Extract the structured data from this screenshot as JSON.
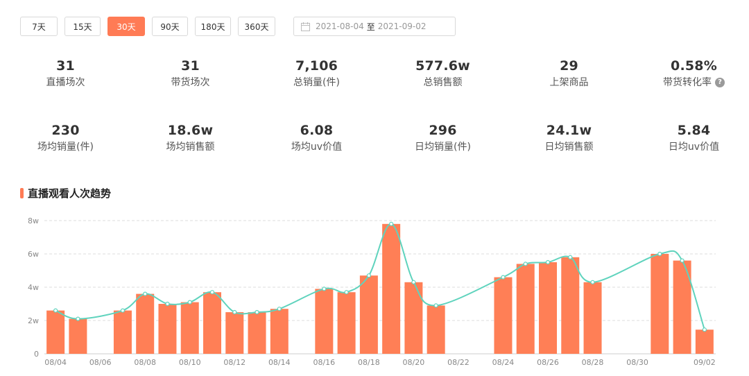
{
  "toolbar": {
    "periods": [
      "7天",
      "15天",
      "30天",
      "90天",
      "180天",
      "360天"
    ],
    "active_period": "30天",
    "date_start": "2021-08-04",
    "date_sep": "至",
    "date_end": "2021-09-02"
  },
  "stats_row1": [
    {
      "value": "31",
      "label": "直播场次"
    },
    {
      "value": "31",
      "label": "带货场次"
    },
    {
      "value": "7,106",
      "label": "总销量(件)"
    },
    {
      "value": "577.6w",
      "label": "总销售额"
    },
    {
      "value": "29",
      "label": "上架商品"
    },
    {
      "value": "0.58%",
      "label": "带货转化率"
    }
  ],
  "stats_row2": [
    {
      "value": "230",
      "label": "场均销量(件)"
    },
    {
      "value": "18.6w",
      "label": "场均销售额"
    },
    {
      "value": "6.08",
      "label": "场均uv价值"
    },
    {
      "value": "296",
      "label": "日均销量(件)"
    },
    {
      "value": "24.1w",
      "label": "日均销售额"
    },
    {
      "value": "5.84",
      "label": "日均uv价值"
    }
  ],
  "section": {
    "title": "直播观看人次趋势"
  },
  "colors": {
    "bar": "#ff7f56",
    "line": "#5fd3bd",
    "accent": "#ff7b55",
    "grid": "#dddddd"
  },
  "icons": {
    "calendar": "calendar-icon",
    "help": "question-circle-icon"
  },
  "chart_data": {
    "type": "bar",
    "title": "直播观看人次趋势",
    "unit": "w",
    "categories": [
      "08/04",
      "08/05",
      "08/06",
      "08/07",
      "08/08",
      "08/09",
      "08/10",
      "08/11",
      "08/12",
      "08/13",
      "08/14",
      "08/15",
      "08/16",
      "08/17",
      "08/18",
      "08/19",
      "08/20",
      "08/21",
      "08/22",
      "08/23",
      "08/24",
      "08/25",
      "08/26",
      "08/27",
      "08/28",
      "08/29",
      "08/30",
      "08/31",
      "09/01",
      "09/02"
    ],
    "x_tick_labels": [
      "08/04",
      "08/06",
      "08/08",
      "08/10",
      "08/12",
      "08/14",
      "08/16",
      "08/18",
      "08/20",
      "08/22",
      "08/24",
      "08/26",
      "08/28",
      "08/30",
      "09/02"
    ],
    "y_ticks": [
      "0",
      "2w",
      "4w",
      "6w",
      "8w"
    ],
    "ylim": [
      0,
      8
    ],
    "series": [
      {
        "type": "bar",
        "values": [
          2.6,
          2.1,
          null,
          2.6,
          3.6,
          3.0,
          3.1,
          3.7,
          2.5,
          2.5,
          2.7,
          null,
          3.9,
          3.7,
          4.7,
          7.8,
          4.3,
          2.9,
          null,
          null,
          4.6,
          5.4,
          5.5,
          5.8,
          4.3,
          null,
          null,
          6.0,
          5.6,
          1.45
        ]
      },
      {
        "type": "line",
        "smooth": true,
        "values": [
          2.6,
          2.1,
          null,
          2.6,
          3.6,
          3.0,
          3.1,
          3.7,
          2.5,
          2.5,
          2.7,
          null,
          3.9,
          3.7,
          4.7,
          7.8,
          4.3,
          2.9,
          null,
          null,
          4.6,
          5.4,
          5.5,
          5.8,
          4.3,
          null,
          null,
          6.0,
          5.6,
          1.45
        ]
      }
    ],
    "grid": true
  }
}
